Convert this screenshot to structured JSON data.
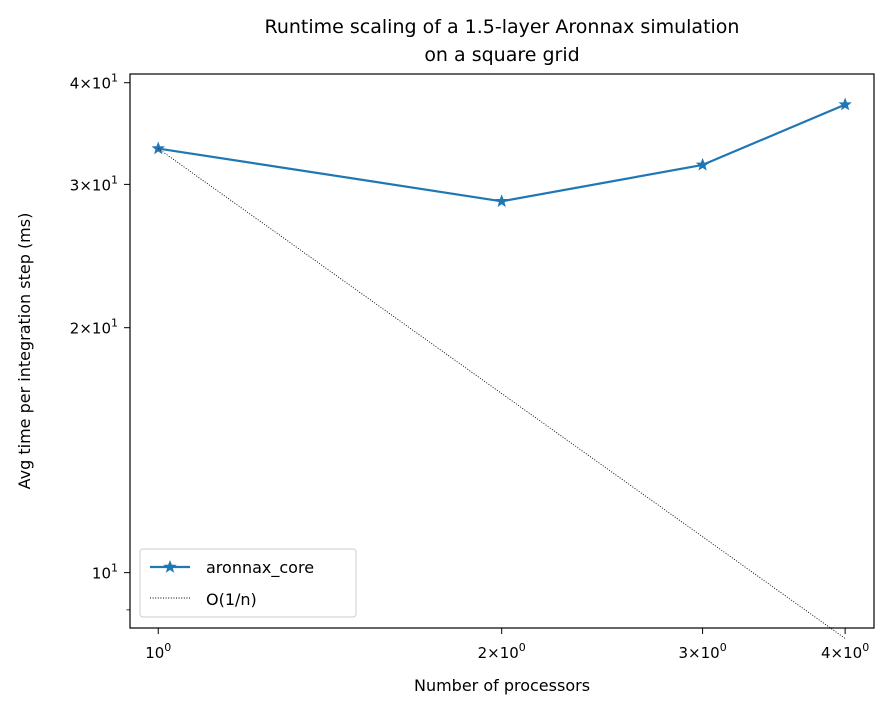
{
  "chart_data": {
    "type": "line",
    "title_line1": "Runtime scaling of a 1.5-layer Aronnax simulation",
    "title_line2": "on a square grid",
    "xlabel": "Number of processors",
    "ylabel": "Avg time per integration step (ms)",
    "xscale": "log",
    "yscale": "log",
    "xlim": [
      0.9446,
      4.24
    ],
    "ylim": [
      8.55,
      41.0
    ],
    "grid": false,
    "legend_position": "lower-left",
    "x_major_ticks": [
      {
        "value": 1,
        "base": "10",
        "exp": "0",
        "mult": ""
      },
      {
        "value": 2,
        "base": "10",
        "exp": "0",
        "mult": "2×"
      },
      {
        "value": 3,
        "base": "10",
        "exp": "0",
        "mult": "3×"
      },
      {
        "value": 4,
        "base": "10",
        "exp": "0",
        "mult": "4×"
      }
    ],
    "y_major_ticks": [
      {
        "value": 10,
        "base": "10",
        "exp": "1",
        "mult": ""
      },
      {
        "value": 20,
        "base": "10",
        "exp": "1",
        "mult": "2×"
      },
      {
        "value": 30,
        "base": "10",
        "exp": "1",
        "mult": "3×"
      },
      {
        "value": 40,
        "base": "10",
        "exp": "1",
        "mult": "4×"
      }
    ],
    "y_minor_ticks": [
      9
    ],
    "series": [
      {
        "name": "aronnax_core",
        "color": "#1f77b4",
        "style": "solid",
        "marker": "star",
        "x": [
          1,
          2,
          3,
          4
        ],
        "y": [
          33.2,
          28.6,
          31.7,
          37.6
        ]
      },
      {
        "name": "O(1/n)",
        "color": "#000000",
        "style": "dotted",
        "marker": "none",
        "x": [
          1,
          2,
          3,
          4
        ],
        "y": [
          33.2,
          16.6,
          11.07,
          8.3
        ]
      }
    ]
  }
}
